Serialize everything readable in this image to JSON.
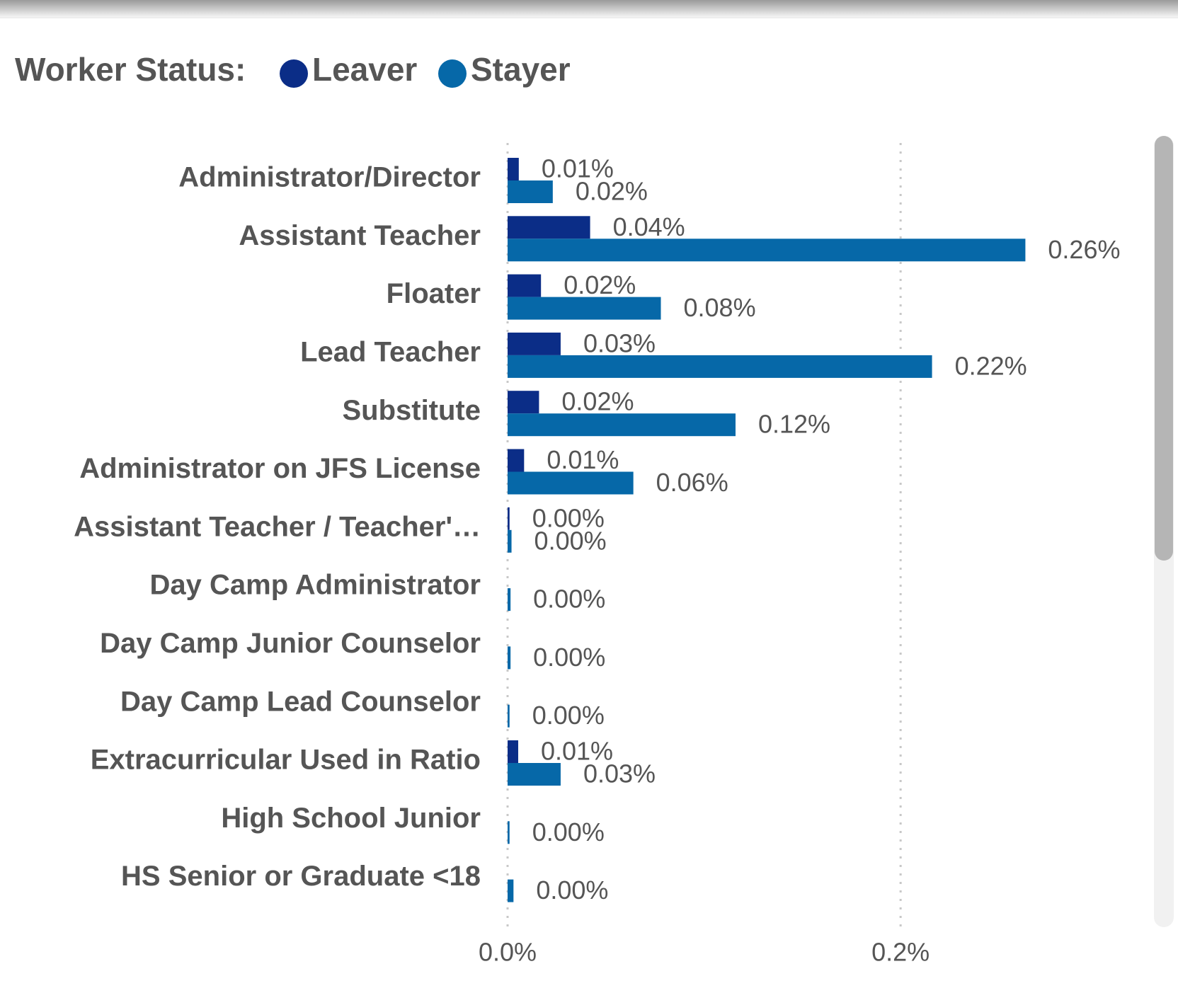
{
  "chart_data": {
    "type": "hbar",
    "legend_title": "Worker Status:",
    "categories": [
      "Administrator/Director",
      "Assistant Teacher",
      "Floater",
      "Lead Teacher",
      "Substitute",
      "Administrator on JFS License",
      "Assistant Teacher / Teacher'…",
      "Day Camp Administrator",
      "Day Camp Junior Counselor",
      "Day Camp Lead Counselor",
      "Extracurricular Used in Ratio",
      "High School Junior",
      "HS Senior or Graduate <18"
    ],
    "series": [
      {
        "name": "Leaver",
        "color": "#0b2d87",
        "values": [
          0.0057,
          0.042,
          0.017,
          0.027,
          0.016,
          0.0084,
          0.001,
          null,
          null,
          null,
          0.0054,
          null,
          null
        ],
        "value_labels": [
          "0.01%",
          "0.04%",
          "0.02%",
          "0.03%",
          "0.02%",
          "0.01%",
          "0.00%",
          null,
          null,
          null,
          "0.01%",
          null,
          null
        ]
      },
      {
        "name": "Stayer",
        "color": "#0668a8",
        "values": [
          0.023,
          0.2635,
          0.078,
          0.216,
          0.116,
          0.064,
          0.002,
          0.0015,
          0.0015,
          0.001,
          0.027,
          0.001,
          0.003
        ],
        "value_labels": [
          "0.02%",
          "0.26%",
          "0.08%",
          "0.22%",
          "0.12%",
          "0.06%",
          "0.00%",
          "0.00%",
          "0.00%",
          "0.00%",
          "0.03%",
          "0.00%",
          "0.00%"
        ]
      }
    ],
    "xlim": [
      0,
      0.33
    ],
    "xticks": [
      {
        "value": 0,
        "label": "0.0%"
      },
      {
        "value": 0.2,
        "label": "0.2%"
      }
    ],
    "grid": true
  }
}
